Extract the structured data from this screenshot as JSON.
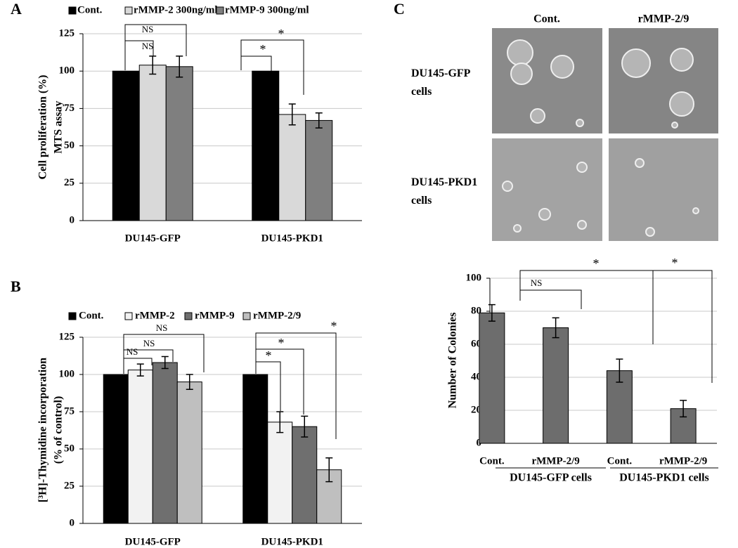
{
  "chart_data": [
    {
      "type": "bar",
      "panel": "A",
      "ylabel": [
        "Cell proliferation (%)",
        "MTS assay"
      ],
      "categories": [
        "DU145-GFP",
        "DU145-PKD1"
      ],
      "series": [
        {
          "name": "Cont.",
          "color": "#000000",
          "values": [
            100,
            100
          ],
          "errors": [
            0,
            0
          ]
        },
        {
          "name": "rMMP-2 300ng/ml",
          "color": "#d9d9d9",
          "values": [
            104,
            71
          ],
          "errors": [
            6,
            7
          ]
        },
        {
          "name": "rMMP-9 300ng/ml",
          "color": "#7f7f7f",
          "values": [
            103,
            67
          ],
          "errors": [
            7,
            5
          ]
        }
      ],
      "ylim": [
        0,
        125
      ],
      "yticks": [
        0,
        25,
        50,
        75,
        100,
        125
      ],
      "grid": true,
      "annotations": [
        "NS",
        "NS",
        "*",
        "*"
      ]
    },
    {
      "type": "bar",
      "panel": "B",
      "ylabel": [
        "[³H]-Thymidine incorporation",
        "(% of control)"
      ],
      "categories": [
        "DU145-GFP",
        "DU145-PKD1"
      ],
      "series": [
        {
          "name": "Cont.",
          "color": "#000000",
          "values": [
            100,
            100
          ],
          "errors": [
            0,
            0
          ]
        },
        {
          "name": "rMMP-2",
          "color": "#f2f2f2",
          "values": [
            103,
            68
          ],
          "errors": [
            4,
            7
          ]
        },
        {
          "name": "rMMP-9",
          "color": "#6f6f6f",
          "values": [
            108,
            65
          ],
          "errors": [
            4,
            7
          ]
        },
        {
          "name": "rMMP-2/9",
          "color": "#bfbfbf",
          "values": [
            95,
            36
          ],
          "errors": [
            5,
            8
          ]
        }
      ],
      "ylim": [
        0,
        125
      ],
      "yticks": [
        0,
        25,
        50,
        75,
        100,
        125
      ],
      "grid": true,
      "annotations": [
        "NS",
        "NS",
        "NS",
        "*",
        "*",
        "*"
      ]
    },
    {
      "type": "bar",
      "panel": "C",
      "image_columns": [
        "Cont.",
        "rMMP-2/9"
      ],
      "image_rows": [
        "DU145-GFP cells",
        "DU145-PKD1 cells"
      ],
      "ylabel": [
        "Number of Colonies"
      ],
      "categories": [
        "Cont.",
        "rMMP-2/9",
        "Cont.",
        "rMMP-2/9"
      ],
      "groups": [
        "DU145-GFP cells",
        "DU145-PKD1 cells"
      ],
      "values": [
        79,
        70,
        44,
        21
      ],
      "errors": [
        5,
        6,
        7,
        5
      ],
      "color": "#6d6d6d",
      "ylim": [
        0,
        100
      ],
      "yticks": [
        0,
        20,
        40,
        60,
        80,
        100
      ],
      "grid": true,
      "annotations": [
        "NS",
        "*",
        "*"
      ]
    }
  ]
}
